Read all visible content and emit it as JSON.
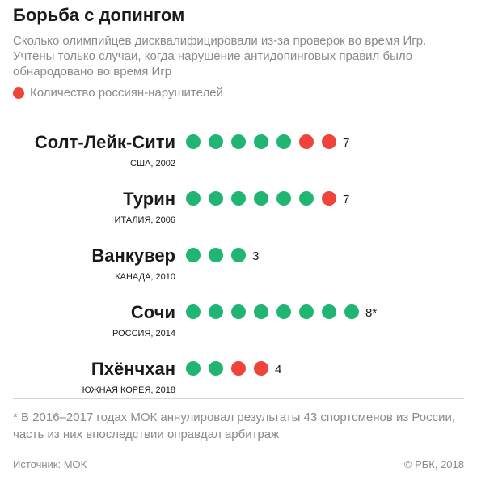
{
  "title": "Борьба с допингом",
  "subtitle": "Сколько олимпийцев дисквалифицировали из-за проверок во время Игр. Учтены только случаи, когда нарушение антидопинговых правил было обнародовано во время Игр",
  "legend": {
    "label": "Количество россиян-нарушителей",
    "color": "#f0443b"
  },
  "colors": {
    "other": "#21b573",
    "russian": "#f0443b",
    "text": "#1a1a1a",
    "muted": "#8a8a8a"
  },
  "chart_data": {
    "type": "table",
    "series": [
      {
        "name": "Количество россиян-нарушителей",
        "values": [
          2,
          1,
          0,
          0,
          2
        ]
      }
    ],
    "rows": [
      {
        "city": "Солт-Лейк-Сити",
        "country_year": "США, 2002",
        "total": 7,
        "russian": 2,
        "label": "7"
      },
      {
        "city": "Турин",
        "country_year": "ИТАЛИЯ, 2006",
        "total": 7,
        "russian": 1,
        "label": "7"
      },
      {
        "city": "Ванкувер",
        "country_year": "КАНАДА, 2010",
        "total": 3,
        "russian": 0,
        "label": "3"
      },
      {
        "city": "Сочи",
        "country_year": "РОССИЯ, 2014",
        "total": 8,
        "russian": 0,
        "label": "8*"
      },
      {
        "city": "Пхёнчхан",
        "country_year": "ЮЖНАЯ КОРЕЯ, 2018",
        "total": 4,
        "russian": 2,
        "label": "4"
      }
    ]
  },
  "footnote": "* В 2016–2017 годах МОК аннулировал результаты 43 спортсменов из России, часть из них впоследствии оправдал арбитраж",
  "source": "Источник: МОК",
  "copyright": "© РБК, 2018"
}
